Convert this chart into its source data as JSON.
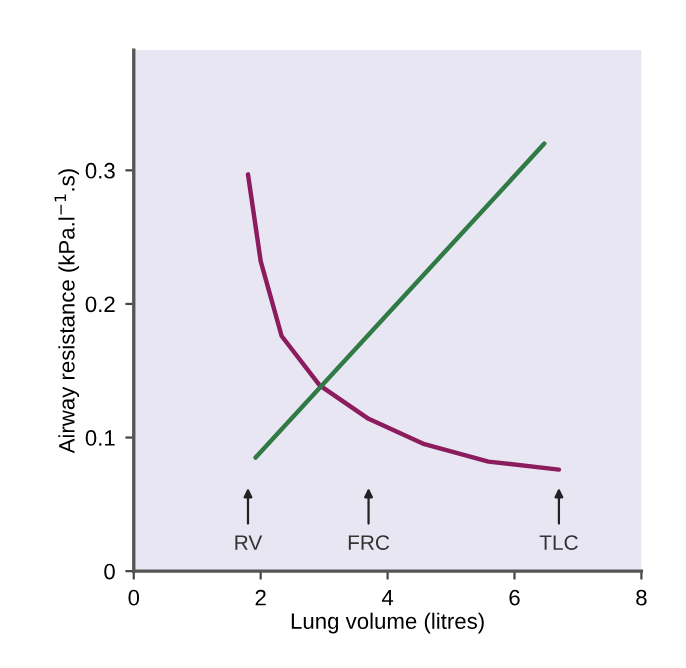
{
  "chart_data": {
    "type": "line",
    "xlabel": "Lung volume (litres)",
    "ylabel": "Airway resistance (kPa.l$^{−1}$.s)",
    "series": [
      {
        "color": "#8b1d5e",
        "x": [
          1.8,
          2.0,
          2.33,
          2.93,
          3.7,
          4.58,
          5.59,
          6.7
        ],
        "values": [
          0.297,
          0.232,
          0.176,
          0.139,
          0.114,
          0.095,
          0.082,
          0.076
        ]
      },
      {
        "color": "#2f7a45",
        "x": [
          1.92,
          6.47
        ],
        "values": [
          0.085,
          0.32
        ]
      }
    ],
    "xlim": [
      0,
      8
    ],
    "xticks": [
      0,
      2,
      4,
      6,
      8
    ],
    "ylim": [
      0,
      0.39
    ],
    "yticks": [
      0,
      0.1,
      0.2,
      0.3
    ],
    "annotations": [
      {
        "text": "RV",
        "x": 1.8
      },
      {
        "text": "FRC",
        "x": 3.7
      },
      {
        "text": "TLC",
        "x": 6.7
      }
    ],
    "grid": false,
    "legend": false,
    "marker": "none",
    "line_style": "solid"
  }
}
